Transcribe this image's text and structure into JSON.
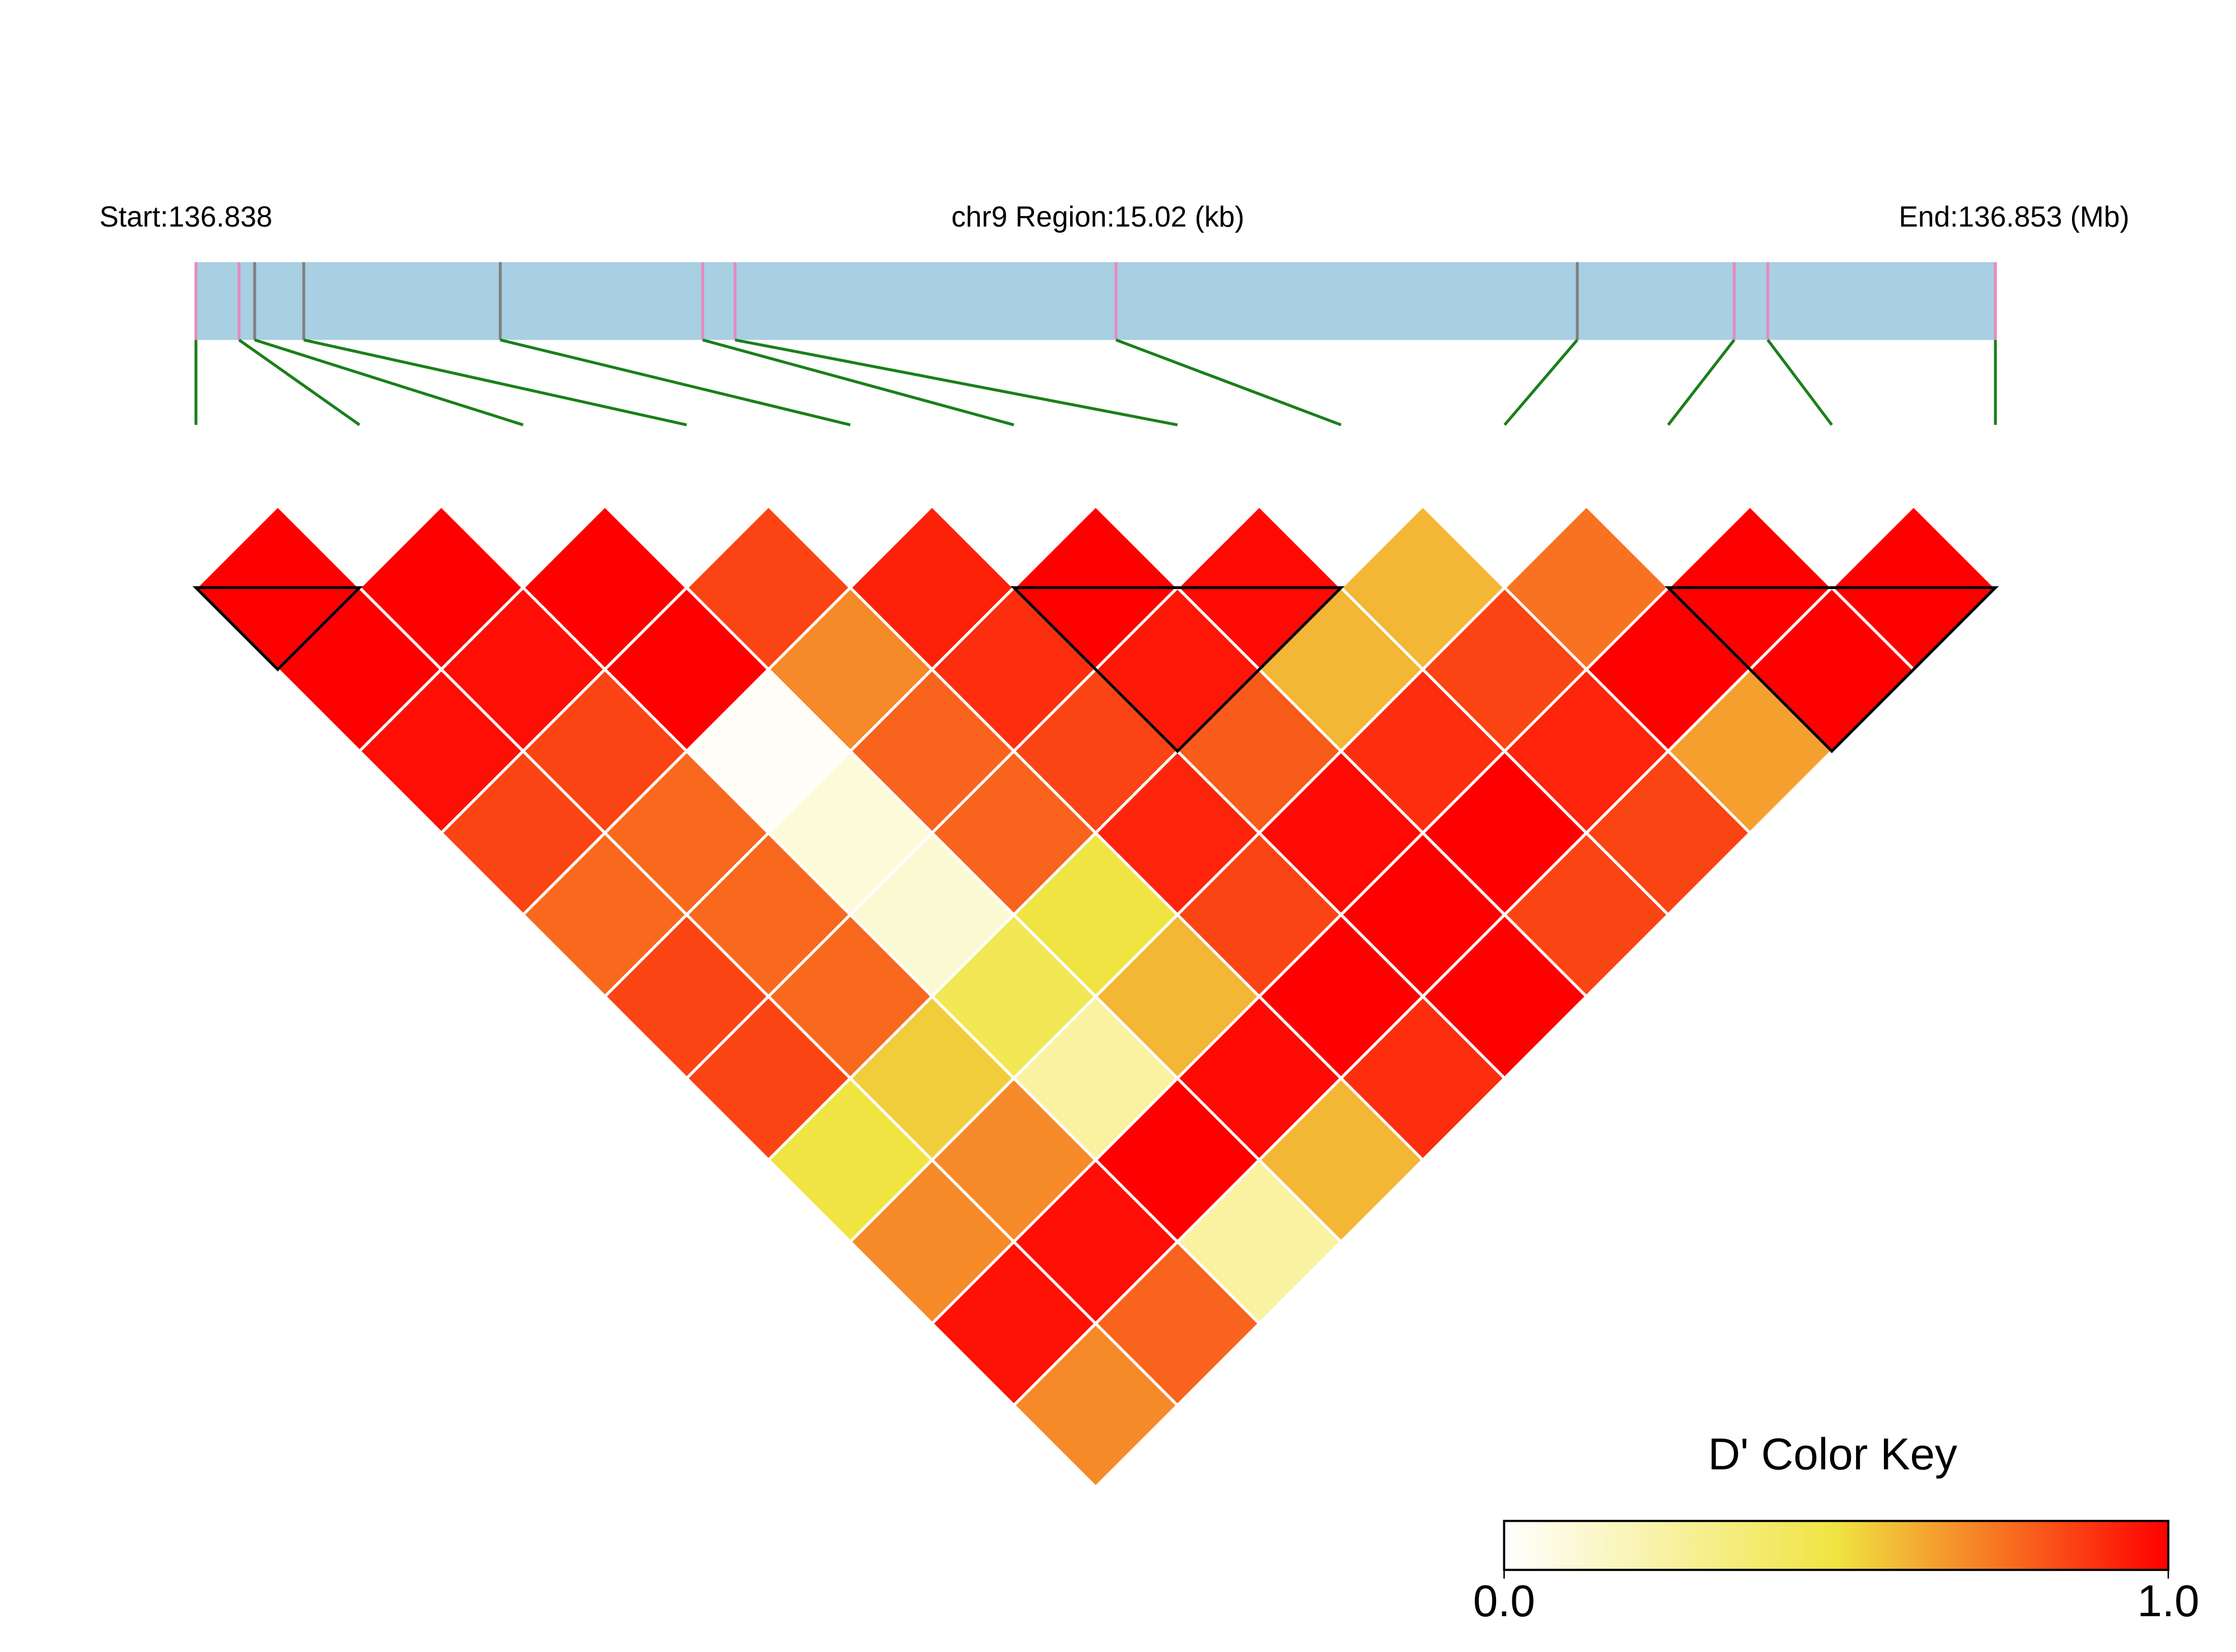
{
  "chart_data": {
    "type": "ld-heatmap",
    "start_label": "Start:136.838",
    "region_label": "chr9 Region:15.02 (kb)",
    "end_label": "End:136.853 (Mb)",
    "xlim": [
      0,
      15.02
    ],
    "bar_color": "#a8cfe2",
    "snp_positions": [
      0,
      0.36,
      0.49,
      0.9,
      2.54,
      4.23,
      4.5,
      7.68,
      11.53,
      12.84,
      13.12,
      15.02
    ],
    "marker_colors": [
      "#e68ac0",
      "#e68ac0",
      "#808080",
      "#808080",
      "#808080",
      "#e68ac0",
      "#e68ac0",
      "#e68ac0",
      "#808080",
      "#e68ac0",
      "#e68ac0",
      "#e68ac0"
    ],
    "connector_color": "#1a7f1a",
    "dprime": [
      [
        1.0,
        1.0,
        0.97,
        0.85,
        0.77,
        0.85,
        0.85,
        0.5,
        0.7,
        0.96,
        0.7
      ],
      [
        1.0,
        0.97,
        0.85,
        0.77,
        0.77,
        0.77,
        0.55,
        0.7,
        0.97,
        0.78
      ],
      [
        1.0,
        1.0,
        0.02,
        0.1,
        0.12,
        0.45,
        0.25,
        1.0,
        0.25
      ],
      [
        0.85,
        0.7,
        0.78,
        0.78,
        0.5,
        0.6,
        0.98,
        0.6
      ],
      [
        0.93,
        0.9,
        0.85,
        0.92,
        0.85,
        1.0,
        0.9
      ],
      [
        1.0,
        0.95,
        0.8,
        0.98,
        1.0,
        1.0
      ],
      [
        0.98,
        0.6,
        0.9,
        1.0,
        0.85
      ],
      [
        0.6,
        0.85,
        0.92,
        0.85
      ],
      [
        0.75,
        1.0,
        0.65
      ],
      [
        1.0,
        1.0
      ],
      [
        1.0
      ]
    ],
    "blocks": [
      [
        0,
        1
      ],
      [
        5,
        7
      ],
      [
        9,
        11
      ]
    ],
    "colorbar": {
      "title": "D' Color Key",
      "colors": [
        "#ffffff",
        "#f0e442",
        "#ff0000"
      ],
      "ticks": [
        {
          "value": 0,
          "label": "0.0"
        },
        {
          "value": 1,
          "label": "1.0"
        }
      ]
    }
  }
}
